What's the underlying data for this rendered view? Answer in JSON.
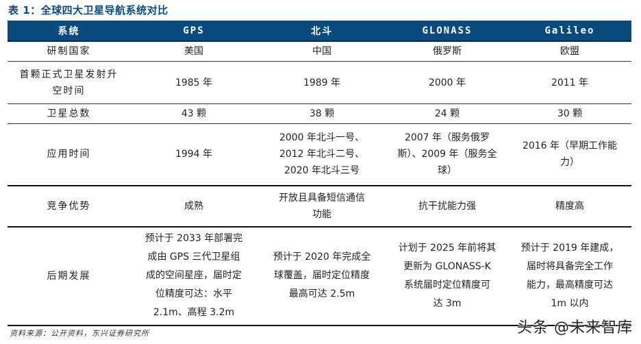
{
  "title": "表 1：全球四大卫星导航系统对比",
  "table": {
    "headers": [
      "系统",
      "GPS",
      "北斗",
      "GLONASS",
      "Galileo"
    ],
    "rows": [
      {
        "label": [
          "研制国家"
        ],
        "cells": [
          [
            "美国"
          ],
          [
            "中国"
          ],
          [
            "俄罗斯"
          ],
          [
            "欧盟"
          ]
        ]
      },
      {
        "label": [
          "首颗正式卫星发射升",
          "空时间"
        ],
        "cells": [
          [
            "1985 年"
          ],
          [
            "1989 年"
          ],
          [
            "2000 年"
          ],
          [
            "2011 年"
          ]
        ]
      },
      {
        "label": [
          "卫星总数"
        ],
        "cells": [
          [
            "43 颗"
          ],
          [
            "38 颗"
          ],
          [
            "24 颗"
          ],
          [
            "30 颗"
          ]
        ]
      },
      {
        "label": [
          "应用时间"
        ],
        "cells": [
          [
            "1994 年"
          ],
          [
            "2000 年北斗一号、",
            "2012 年北斗二号、",
            "2020 年北斗三号"
          ],
          [
            "2007 年（服务俄罗",
            "斯）、2009 年（服务全",
            "球）"
          ],
          [
            "2016 年（早期工作能",
            "力）"
          ]
        ]
      },
      {
        "label": [
          "竞争优势"
        ],
        "cells": [
          [
            "成熟"
          ],
          [
            "开放且具备短信通信",
            "功能"
          ],
          [
            "抗干扰能力强"
          ],
          [
            "精度高"
          ]
        ]
      },
      {
        "label": [
          "后期发展"
        ],
        "cells": [
          [
            "预计于 2033 年部署完",
            "成由 GPS 三代卫星组",
            "成的空间星座，届时定",
            "位精度可达：水平",
            "2.1m、高程 3.2m"
          ],
          [
            "预计于 2020 年完成全",
            "球覆盖，届时定位精度",
            "最高可达 2.5m"
          ],
          [
            "计划于 2025 年前将其",
            "更新为 GLONASS-K",
            "系统届时定位精度可",
            "达 3m"
          ],
          [
            "预计于 2019 年建成，",
            "届时将具备完全工作",
            "能力，最高精度可达",
            "1m 以内"
          ]
        ]
      }
    ]
  },
  "source": "资料来源：公开资料，东兴证券研究所",
  "watermark": "头条 @未来智库",
  "colors": {
    "header_bg": "#0b4a7d",
    "title": "#0c4a7e"
  }
}
